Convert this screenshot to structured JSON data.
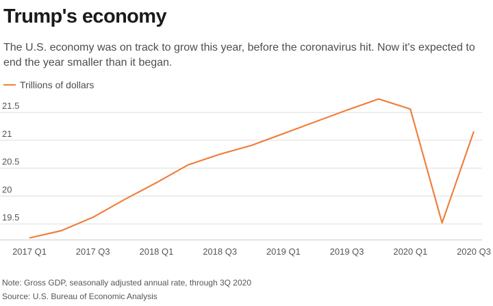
{
  "header": {
    "title": "Trump's economy",
    "subtitle": "The U.S. economy was on track to grow this year, before the coronavirus hit. Now it's expected to end the year smaller than it began."
  },
  "legend": {
    "label": "Trillions of dollars"
  },
  "footer": {
    "note": "Note: Gross GDP, seasonally adjusted annual rate, through 3Q 2020",
    "source": "Source: U.S. Bureau of Economic Analysis"
  },
  "colors": {
    "line": "#f07f3c",
    "grid": "#dddddd",
    "text": "#555555"
  },
  "chart_data": {
    "type": "line",
    "title": "Trump's economy",
    "ylabel": "",
    "xlabel": "",
    "x": [
      "2017 Q1",
      "2017 Q2",
      "2017 Q3",
      "2017 Q4",
      "2018 Q1",
      "2018 Q2",
      "2018 Q3",
      "2018 Q4",
      "2019 Q1",
      "2019 Q2",
      "2019 Q3",
      "2019 Q4",
      "2020 Q1",
      "2020 Q2",
      "2020 Q3"
    ],
    "x_tick_labels": [
      "2017 Q1",
      "2017 Q3",
      "2018 Q1",
      "2018 Q3",
      "2019 Q1",
      "2019 Q3",
      "2020 Q1",
      "2020 Q3"
    ],
    "series": [
      {
        "name": "Trillions of dollars",
        "values": [
          19.25,
          19.38,
          19.62,
          19.94,
          20.24,
          20.56,
          20.75,
          20.91,
          21.12,
          21.33,
          21.54,
          21.74,
          21.56,
          19.52,
          21.16
        ]
      }
    ],
    "y_ticks": [
      19.5,
      20,
      20.5,
      21,
      21.5
    ],
    "y_tick_labels": [
      "19.5",
      "20",
      "20.5",
      "21",
      "21.5"
    ],
    "ylim": [
      19.22,
      21.76
    ],
    "grid": true,
    "legend_position": "top-left"
  }
}
